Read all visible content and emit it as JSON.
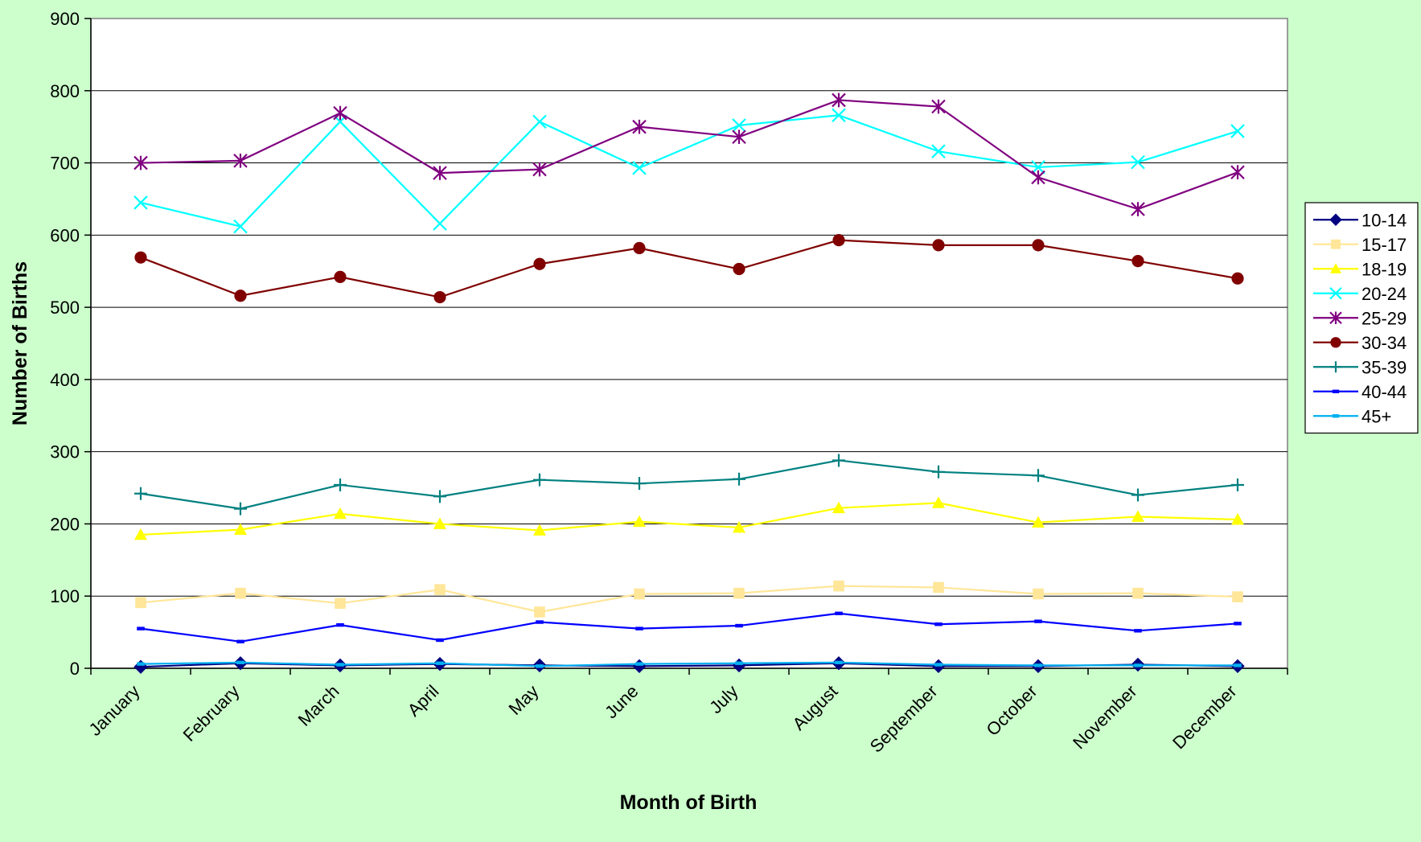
{
  "chart_data": {
    "type": "line",
    "title": "",
    "xlabel": "Month of Birth",
    "ylabel": "Number of Births",
    "ylim": [
      0,
      900
    ],
    "yticks": [
      0,
      100,
      200,
      300,
      400,
      500,
      600,
      700,
      800,
      900
    ],
    "grid": "horizontal",
    "legend_position": "right",
    "categories": [
      "January",
      "February",
      "March",
      "April",
      "May",
      "June",
      "July",
      "August",
      "September",
      "October",
      "November",
      "December"
    ],
    "series": [
      {
        "name": "10-14",
        "marker": "diamond",
        "color": "#000080",
        "values": [
          2,
          7,
          4,
          6,
          4,
          3,
          4,
          7,
          3,
          3,
          5,
          3
        ]
      },
      {
        "name": "15-17",
        "marker": "square",
        "color": "#ffe699",
        "values": [
          91,
          104,
          90,
          109,
          78,
          103,
          104,
          114,
          112,
          103,
          104,
          99
        ]
      },
      {
        "name": "18-19",
        "marker": "triangle",
        "color": "#ffff00",
        "values": [
          185,
          192,
          214,
          200,
          191,
          203,
          195,
          222,
          229,
          202,
          210,
          206
        ]
      },
      {
        "name": "20-24",
        "marker": "x",
        "color": "#00ffff",
        "values": [
          645,
          612,
          757,
          616,
          757,
          693,
          752,
          766,
          716,
          694,
          701,
          744
        ]
      },
      {
        "name": "25-29",
        "marker": "star",
        "color": "#800080",
        "values": [
          700,
          703,
          769,
          686,
          691,
          750,
          736,
          787,
          778,
          680,
          636,
          687
        ]
      },
      {
        "name": "30-34",
        "marker": "circle",
        "color": "#800000",
        "values": [
          569,
          516,
          542,
          514,
          560,
          582,
          553,
          593,
          586,
          586,
          564,
          540
        ]
      },
      {
        "name": "35-39",
        "marker": "plus",
        "color": "#008080",
        "values": [
          242,
          221,
          254,
          238,
          261,
          256,
          262,
          288,
          272,
          267,
          240,
          254
        ]
      },
      {
        "name": "40-44",
        "marker": "dash",
        "color": "#0000ff",
        "values": [
          55,
          37,
          60,
          39,
          64,
          55,
          59,
          76,
          61,
          65,
          52,
          62
        ]
      },
      {
        "name": "45+",
        "marker": "dash",
        "color": "#00b0f0",
        "values": [
          6,
          8,
          5,
          7,
          3,
          6,
          7,
          8,
          5,
          4,
          4,
          4
        ]
      }
    ]
  }
}
